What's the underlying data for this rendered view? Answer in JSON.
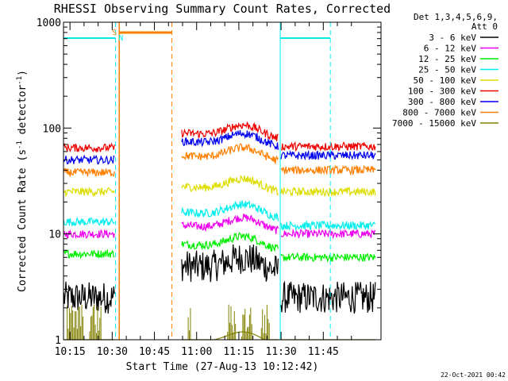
{
  "chart_data": {
    "type": "line",
    "title": "RHESSI Observing Summary Count Rates, Corrected",
    "xlabel": "Start Time (27-Aug-13 10:12:42)",
    "ylabel_parts": [
      "Corrected Count Rate (s",
      "-1",
      " detector",
      "-1",
      ")"
    ],
    "yscale": "log",
    "ylim": [
      1,
      1000
    ],
    "xlim_min": [
      12.7,
      125.5
    ],
    "y_ticks": [
      {
        "value": 1,
        "label": "1"
      },
      {
        "value": 10,
        "label": "10"
      },
      {
        "value": 100,
        "label": "100"
      },
      {
        "value": 1000,
        "label": "1000"
      }
    ],
    "x_ticks": [
      {
        "value": 15,
        "label": "10:15"
      },
      {
        "value": 30,
        "label": "10:30"
      },
      {
        "value": 45,
        "label": "10:45"
      },
      {
        "value": 60,
        "label": "11:00"
      },
      {
        "value": 75,
        "label": "11:15"
      },
      {
        "value": 90,
        "label": "11:30"
      },
      {
        "value": 105,
        "label": "11:45"
      }
    ],
    "legend_header": [
      "Det 1,3,4,5,6,9,",
      "Att 0"
    ],
    "legend_placement": "right",
    "series": [
      {
        "name": "3 - 6 keV",
        "color": "#000000",
        "pre": 2.5,
        "post": 5.0,
        "tail": 2.5
      },
      {
        "name": "6 - 12 keV",
        "color": "#ee00ee",
        "pre": 10,
        "post": 12,
        "tail": 10
      },
      {
        "name": "12 - 25 keV",
        "color": "#00ee00",
        "pre": 6.5,
        "post": 8,
        "tail": 6
      },
      {
        "name": "25 - 50 keV",
        "color": "#00eeee",
        "pre": 13,
        "post": 16,
        "tail": 12
      },
      {
        "name": "50 - 100 keV",
        "color": "#dddd00",
        "pre": 25,
        "post": 28,
        "tail": 25
      },
      {
        "name": "100 - 300 keV",
        "color": "#ee0000",
        "pre": 65,
        "post": 90,
        "tail": 67
      },
      {
        "name": "300 - 800 keV",
        "color": "#0000ee",
        "pre": 50,
        "post": 75,
        "tail": 55
      },
      {
        "name": "800 - 7000 keV",
        "color": "#ff7f00",
        "pre": 38,
        "post": 55,
        "tail": 40
      },
      {
        "name": "7000 - 15000 keV",
        "color": "#808000",
        "pre": 1,
        "post": 1,
        "tail": 1
      }
    ],
    "intervals": {
      "saa": {
        "start": 32.5,
        "end": 51.2,
        "label": "S",
        "color": "#ff7f00"
      },
      "night_before": {
        "start": 12.7,
        "end": 31.2,
        "color": "#00eeee"
      },
      "night_after": {
        "start": 89.7,
        "end": 107.5,
        "color": "#00eeee"
      },
      "night_label": "N"
    },
    "grid": false
  },
  "footer": {
    "timestamp": "22-Oct-2021 00:42"
  }
}
